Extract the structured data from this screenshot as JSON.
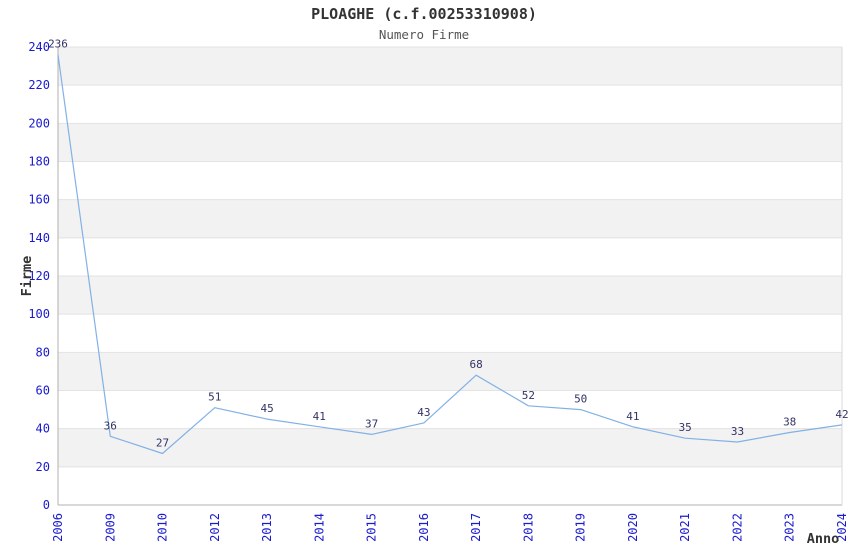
{
  "title": "PLOAGHE (c.f.00253310908)",
  "subtitle": "Numero Firme",
  "chart_data": {
    "type": "line",
    "x": [
      "2006",
      "2009",
      "2010",
      "2012",
      "2013",
      "2014",
      "2015",
      "2016",
      "2017",
      "2018",
      "2019",
      "2020",
      "2021",
      "2022",
      "2023",
      "2024"
    ],
    "values": [
      236,
      36,
      27,
      51,
      45,
      41,
      37,
      43,
      68,
      52,
      50,
      41,
      35,
      33,
      38,
      42
    ],
    "title": "PLOAGHE (c.f.00253310908)",
    "subtitle": "Numero Firme",
    "xlabel": "Anno",
    "ylabel": "Firme",
    "ylim": [
      0,
      240
    ],
    "yticks": [
      0,
      20,
      40,
      60,
      80,
      100,
      120,
      140,
      160,
      180,
      200,
      220,
      240
    ],
    "grid": "horizontal",
    "bands": "alternating 20-unit horizontal bands, gray on 20-40, 60-80, 100-120, 140-160, 180-200, 220-240",
    "legend": "none",
    "markers": "none",
    "data_labels_shown": true,
    "xtick_rotation_deg": 90,
    "colors": {
      "line": "#82b1e6",
      "tick_label": "#1a1ace",
      "data_label": "#333366",
      "band_gray": "#f2f2f2",
      "band_white": "#ffffff",
      "gridline": "#e3e3e3",
      "axis_spine": "#b0b0b0",
      "right_edge": "#d9d9d9",
      "title_text": "#333333",
      "subtitle_text": "#555555",
      "axis_title_text": "#333333",
      "background": "#ffffff"
    }
  }
}
